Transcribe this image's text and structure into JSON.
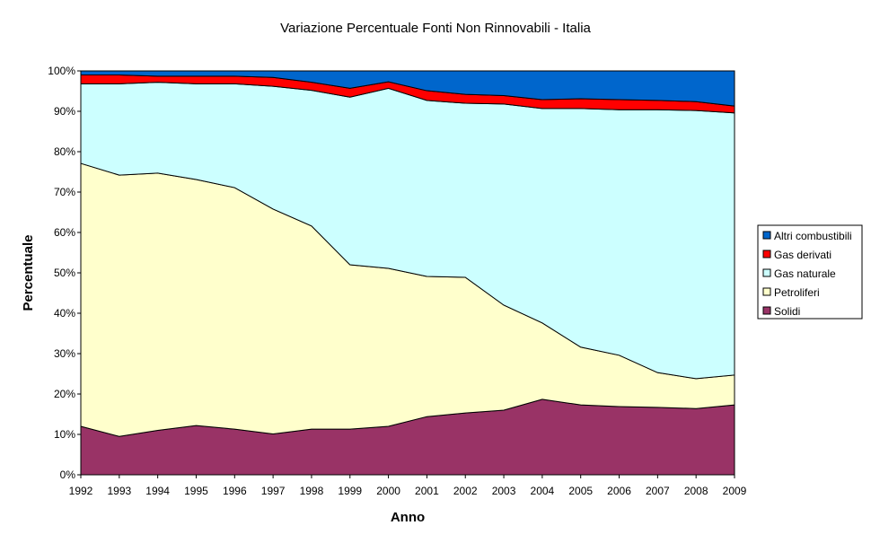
{
  "chart_data": {
    "type": "area",
    "stacked": true,
    "title": "Variazione Percentuale Fonti Non Rinnovabili - Italia",
    "xlabel": "Anno",
    "ylabel": "Percentuale",
    "ylim": [
      0,
      100
    ],
    "yticks": [
      "0%",
      "10%",
      "20%",
      "30%",
      "40%",
      "50%",
      "60%",
      "70%",
      "80%",
      "90%",
      "100%"
    ],
    "x": [
      "1992",
      "1993",
      "1994",
      "1995",
      "1996",
      "1997",
      "1998",
      "1999",
      "2000",
      "2001",
      "2002",
      "2003",
      "2004",
      "2005",
      "2006",
      "2007",
      "2008",
      "2009"
    ],
    "legend_position": "right",
    "series": [
      {
        "name": "Solidi",
        "color": "#993366",
        "values": [
          12.0,
          9.5,
          11.0,
          12.2,
          11.3,
          10.1,
          11.3,
          11.3,
          12.0,
          14.4,
          15.3,
          16.0,
          18.7,
          17.3,
          16.9,
          16.7,
          16.4,
          17.3
        ]
      },
      {
        "name": "Petroliferi",
        "color": "#FFFFCC",
        "values": [
          65.1,
          64.7,
          63.7,
          60.9,
          59.8,
          55.7,
          50.3,
          40.7,
          39.1,
          34.7,
          33.6,
          26.0,
          18.9,
          14.3,
          12.7,
          8.6,
          7.4,
          7.4
        ]
      },
      {
        "name": "Gas naturale",
        "color": "#CCFFFF",
        "values": [
          19.7,
          22.6,
          22.5,
          23.7,
          25.7,
          30.4,
          33.6,
          41.5,
          44.6,
          43.6,
          43.1,
          49.8,
          53.1,
          59.1,
          60.8,
          65.1,
          66.4,
          64.9
        ]
      },
      {
        "name": "Gas derivati",
        "color": "#FF0000",
        "values": [
          2.2,
          2.2,
          1.5,
          1.9,
          1.9,
          2.2,
          2.0,
          2.2,
          1.6,
          2.4,
          2.2,
          2.1,
          2.2,
          2.4,
          2.5,
          2.3,
          2.2,
          1.7
        ]
      },
      {
        "name": "Altri combustibili",
        "color": "#0066CC",
        "values": [
          1.0,
          1.0,
          1.3,
          1.3,
          1.3,
          1.6,
          2.8,
          4.3,
          2.7,
          4.9,
          5.8,
          6.1,
          7.1,
          6.9,
          7.1,
          7.3,
          7.6,
          8.7
        ]
      }
    ]
  }
}
